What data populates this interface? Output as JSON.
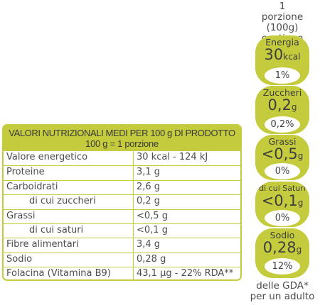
{
  "header": {
    "portion_line1": "1",
    "portion_line2": "porzione",
    "portion_line3": "(100g) contiene"
  },
  "table": {
    "title": "VALORI NUTRIZIONALI MEDI PER 100 g DI PRODOTTO",
    "subtitle": "100 g = 1 porzione",
    "rows": [
      {
        "label": "Valore energetico",
        "value": "30 kcal - 124 kJ"
      },
      {
        "label": "Proteine",
        "value": "3,1 g"
      },
      {
        "label": "Carboidrati",
        "value": "2,6 g"
      },
      {
        "label": "di cui zuccheri",
        "value": "0,2 g"
      },
      {
        "label": "Grassi",
        "value": "<0,5 g"
      },
      {
        "label": "di cui saturi",
        "value": "<0,1 g"
      },
      {
        "label": "Fibre alimentari",
        "value": "3,4 g"
      },
      {
        "label": "Sodio",
        "value": "0,28 g"
      },
      {
        "label": "Folacina (Vitamina B9)",
        "value": "43,1 µg - 22% RDA**"
      }
    ]
  },
  "gda": [
    {
      "name": "Energia",
      "value": "30",
      "unit": "kcal",
      "percent": "1%"
    },
    {
      "name": "Zuccheri",
      "value": "0,2",
      "unit": "g",
      "percent": "0,2%"
    },
    {
      "name": "Grassi",
      "value": "<0,5",
      "unit": "g",
      "percent": "0%"
    },
    {
      "name": "di cui Saturi",
      "value": "<0,1",
      "unit": "g",
      "percent": "0%"
    },
    {
      "name": "Sodio",
      "value": "0,28",
      "unit": "g",
      "percent": "12%"
    }
  ],
  "footer": {
    "line1": "delle GDA*",
    "line2": "per un adulto"
  },
  "colors": {
    "accent": "#c4cb3d",
    "text": "#4d4d4d"
  }
}
